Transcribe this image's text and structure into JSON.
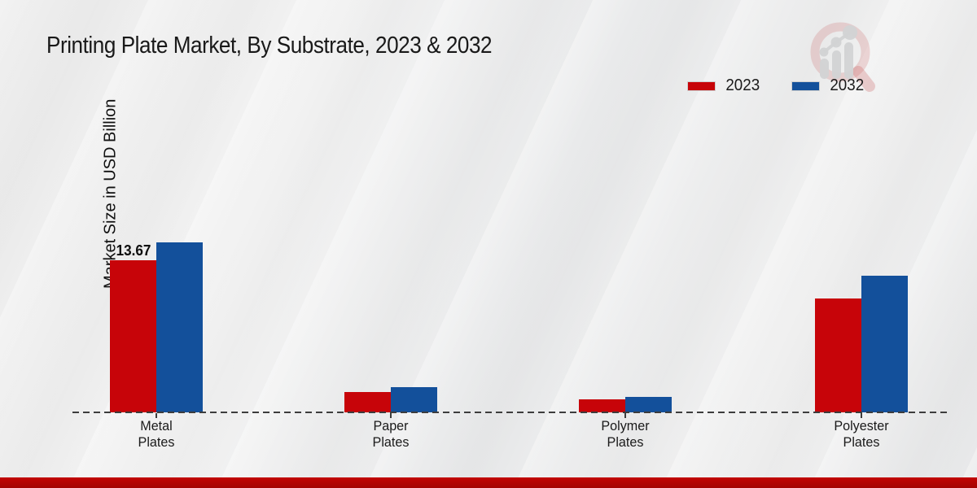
{
  "header": {
    "title": "Printing Plate Market, By Substrate, 2023 & 2032"
  },
  "chart_data": {
    "type": "bar",
    "title": "Printing Plate Market, By Substrate, 2023 & 2032",
    "xlabel": "",
    "ylabel": "Market Size in USD Billion",
    "categories": [
      "Metal\nPlates",
      "Paper\nPlates",
      "Polymer\nPlates",
      "Polyester\nPlates"
    ],
    "series": [
      {
        "name": "2023",
        "color": "#c70409",
        "values": [
          13.67,
          1.8,
          1.15,
          10.25
        ],
        "bar_labels": [
          "13.67",
          "",
          "",
          ""
        ]
      },
      {
        "name": "2032",
        "color": "#13509b",
        "values": [
          15.3,
          2.25,
          1.4,
          12.3
        ],
        "bar_labels": [
          "",
          "",
          "",
          ""
        ]
      }
    ],
    "ylim": [
      0,
      16
    ],
    "grid": false,
    "legend_position": "top-right",
    "baseline_style": "dashed"
  },
  "colors": {
    "series_2023": "#c70409",
    "series_2032": "#13509b",
    "footer_bar_top": "#c20503",
    "footer_bar_bottom": "#a30301",
    "baseline": "#3d3d3d",
    "background": "#ededee"
  },
  "watermark": {
    "icon": "magnifier-bar-chart-logo"
  }
}
